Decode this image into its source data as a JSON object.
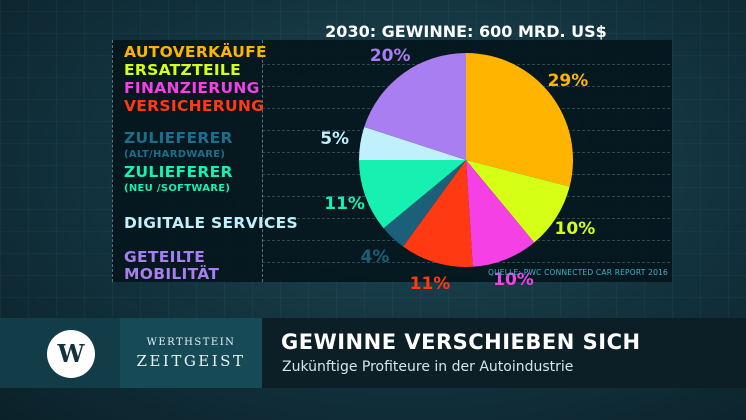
{
  "chart_data": {
    "type": "pie",
    "title": "2030: GEWINNE: 600 MRD. US$",
    "slices": [
      {
        "label": "AUTOVERKÄUFE",
        "value": 29,
        "pct_label": "29%",
        "color": "#ffb400"
      },
      {
        "label": "ERSATZTEILE",
        "value": 10,
        "pct_label": "10%",
        "color": "#d6ff16"
      },
      {
        "label": "FINANZIERUNG",
        "value": 10,
        "pct_label": "10%",
        "color": "#f440e4"
      },
      {
        "label": "VERSICHERUNG",
        "value": 11,
        "pct_label": "11%",
        "color": "#ff3a12"
      },
      {
        "label": "ZULIEFERER",
        "sublabel": "(ALT/HARDWARE)",
        "value": 4,
        "pct_label": "4%",
        "color": "#1b5f78"
      },
      {
        "label": "ZULIEFERER",
        "sublabel": "(NEU /SOFTWARE)",
        "value": 11,
        "pct_label": "11%",
        "color": "#16f0b0"
      },
      {
        "label": "DIGITALE SERVICES",
        "value": 5,
        "pct_label": "5%",
        "color": "#bff0fc"
      },
      {
        "label": "GETEILTE MOBILITÄT",
        "value": 20,
        "pct_label": "20%",
        "color": "#a97ef0"
      }
    ],
    "source": "QUELLE: PWC CONNECTED CAR REPORT 2016"
  },
  "legend": {
    "autoverkaeufe": "AUTOVERKÄUFE",
    "ersatzteile": "ERSATZTEILE",
    "finanzierung": "FINANZIERUNG",
    "versicherung": "VERSICHERUNG",
    "zulieferer_alt": "ZULIEFERER",
    "zulieferer_alt_sub": "(ALT/HARDWARE)",
    "zulieferer_neu": "ZULIEFERER",
    "zulieferer_neu_sub": "(NEU /SOFTWARE)",
    "digitale_services": "DIGITALE SERVICES",
    "geteilte": "GETEILTE",
    "mobilitaet": "MOBILITÄT"
  },
  "footer": {
    "logo_letter": "W",
    "brand_top": "WERTHSTEIN",
    "brand_bottom": "ZEITGEIST",
    "headline": "GEWINNE VERSCHIEBEN SICH",
    "subline": "Zukünftige Profiteure in der Autoindustrie"
  }
}
